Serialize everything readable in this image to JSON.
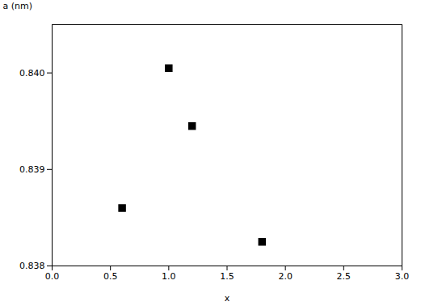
{
  "chart_data": {
    "type": "scatter",
    "x": [
      0.6,
      1.0,
      1.2,
      1.8
    ],
    "y": [
      0.8386,
      0.84005,
      0.83945,
      0.83825
    ],
    "color": "black",
    "marker": "square",
    "xlabel": "x",
    "ylabel": "a (nm)",
    "xlim": [
      0.0,
      3.0
    ],
    "ylim": [
      0.838,
      0.8405
    ],
    "xticks": [
      {
        "value": 0,
        "label": "0.0"
      },
      0.5,
      {
        "value": 1,
        "label": "1.0"
      },
      1.5,
      {
        "value": 2,
        "label": "2.0"
      },
      2.5,
      {
        "value": 3,
        "label": "3.0"
      }
    ],
    "yticks": [
      0.838,
      0.839,
      {
        "value": 0.84,
        "label": "0.840"
      }
    ]
  }
}
